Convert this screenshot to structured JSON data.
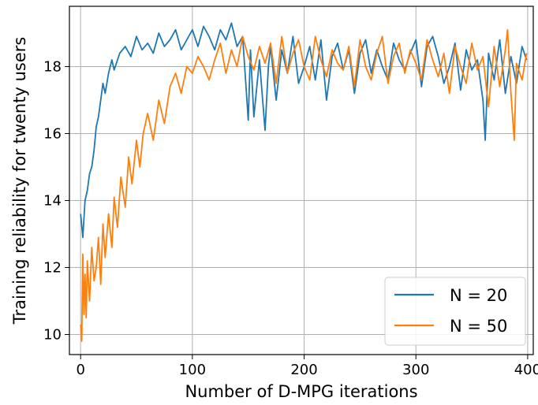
{
  "chart_data": {
    "type": "line",
    "title": "",
    "xlabel": "Number of D-MPG iterations",
    "ylabel": "Training reliability for twenty users",
    "xlim": [
      -10,
      405
    ],
    "ylim": [
      9.4,
      19.8
    ],
    "xticks": [
      0,
      100,
      200,
      300,
      400
    ],
    "yticks": [
      10,
      12,
      14,
      16,
      18
    ],
    "xtick_labels": [
      "0",
      "100",
      "200",
      "300",
      "400"
    ],
    "ytick_labels": [
      "10",
      "12",
      "14",
      "16",
      "18"
    ],
    "grid": true,
    "legend_position": "lower-right",
    "legend_labels": [
      "N = 20",
      "N = 50"
    ],
    "series": [
      {
        "name": "N = 20",
        "color": "#1f77b4",
        "x": [
          0,
          2,
          4,
          6,
          8,
          10,
          12,
          14,
          16,
          18,
          20,
          22,
          25,
          28,
          30,
          35,
          40,
          45,
          50,
          55,
          60,
          65,
          70,
          75,
          80,
          85,
          90,
          95,
          100,
          105,
          110,
          115,
          120,
          125,
          130,
          135,
          140,
          145,
          150,
          152,
          155,
          160,
          165,
          168,
          170,
          175,
          180,
          185,
          190,
          195,
          200,
          205,
          210,
          215,
          220,
          225,
          230,
          235,
          240,
          245,
          250,
          255,
          260,
          265,
          270,
          275,
          280,
          285,
          290,
          295,
          300,
          305,
          310,
          315,
          320,
          325,
          330,
          335,
          340,
          345,
          350,
          355,
          360,
          362,
          365,
          370,
          375,
          380,
          385,
          390,
          395,
          399
        ],
        "y": [
          13.6,
          12.9,
          14.0,
          14.3,
          14.8,
          15.0,
          15.5,
          16.2,
          16.5,
          17.0,
          17.5,
          17.2,
          17.8,
          18.2,
          17.9,
          18.4,
          18.6,
          18.3,
          18.9,
          18.5,
          18.7,
          18.4,
          19.0,
          18.6,
          18.8,
          19.1,
          18.5,
          18.8,
          19.1,
          18.6,
          19.2,
          18.9,
          18.5,
          19.1,
          18.8,
          19.3,
          18.6,
          18.9,
          16.4,
          18.5,
          16.5,
          18.2,
          16.1,
          18.0,
          18.6,
          17.0,
          18.5,
          17.8,
          18.9,
          17.5,
          18.0,
          18.6,
          17.6,
          18.8,
          17.0,
          18.3,
          18.7,
          17.9,
          18.5,
          17.2,
          18.4,
          18.8,
          17.8,
          18.5,
          18.0,
          17.6,
          18.7,
          18.2,
          17.9,
          18.4,
          18.8,
          17.4,
          18.6,
          18.9,
          18.3,
          17.5,
          18.0,
          18.7,
          17.3,
          18.5,
          17.9,
          18.2,
          17.0,
          15.8,
          18.4,
          17.6,
          18.8,
          17.2,
          18.3,
          17.5,
          18.6,
          18.2
        ]
      },
      {
        "name": "N = 50",
        "color": "#ff7f0e",
        "x": [
          0,
          1,
          2,
          3,
          4,
          5,
          6,
          8,
          10,
          12,
          14,
          16,
          18,
          20,
          22,
          25,
          28,
          30,
          33,
          36,
          40,
          43,
          46,
          50,
          53,
          56,
          60,
          65,
          70,
          75,
          80,
          85,
          90,
          95,
          100,
          105,
          110,
          115,
          120,
          125,
          130,
          135,
          140,
          145,
          150,
          155,
          160,
          165,
          170,
          175,
          180,
          185,
          190,
          195,
          200,
          205,
          210,
          215,
          220,
          225,
          230,
          235,
          240,
          245,
          250,
          255,
          260,
          265,
          270,
          275,
          280,
          285,
          290,
          295,
          300,
          305,
          310,
          315,
          320,
          325,
          330,
          335,
          340,
          345,
          350,
          355,
          360,
          365,
          370,
          375,
          380,
          382,
          385,
          388,
          390,
          395,
          399
        ],
        "y": [
          10.3,
          9.8,
          12.4,
          10.6,
          11.8,
          10.5,
          12.2,
          11.0,
          12.6,
          11.6,
          12.0,
          12.9,
          11.5,
          13.3,
          12.3,
          13.6,
          12.6,
          14.1,
          13.2,
          14.7,
          13.8,
          15.3,
          14.5,
          15.8,
          15.0,
          16.0,
          16.6,
          15.8,
          17.0,
          16.3,
          17.4,
          17.8,
          17.2,
          18.0,
          17.8,
          18.3,
          18.0,
          17.6,
          18.2,
          18.7,
          17.8,
          18.5,
          18.0,
          18.9,
          18.3,
          17.9,
          18.6,
          18.1,
          18.7,
          17.5,
          18.9,
          17.8,
          18.4,
          18.8,
          18.0,
          17.6,
          18.9,
          18.2,
          17.7,
          18.5,
          18.1,
          17.9,
          18.6,
          17.4,
          18.8,
          18.0,
          17.6,
          18.4,
          18.9,
          17.5,
          18.3,
          18.7,
          17.8,
          18.5,
          18.1,
          17.6,
          18.8,
          18.2,
          17.7,
          18.4,
          17.2,
          18.6,
          18.0,
          17.5,
          18.7,
          17.9,
          18.3,
          16.8,
          18.6,
          17.4,
          18.5,
          19.1,
          17.2,
          15.8,
          18.1,
          17.6,
          18.4
        ]
      }
    ]
  }
}
